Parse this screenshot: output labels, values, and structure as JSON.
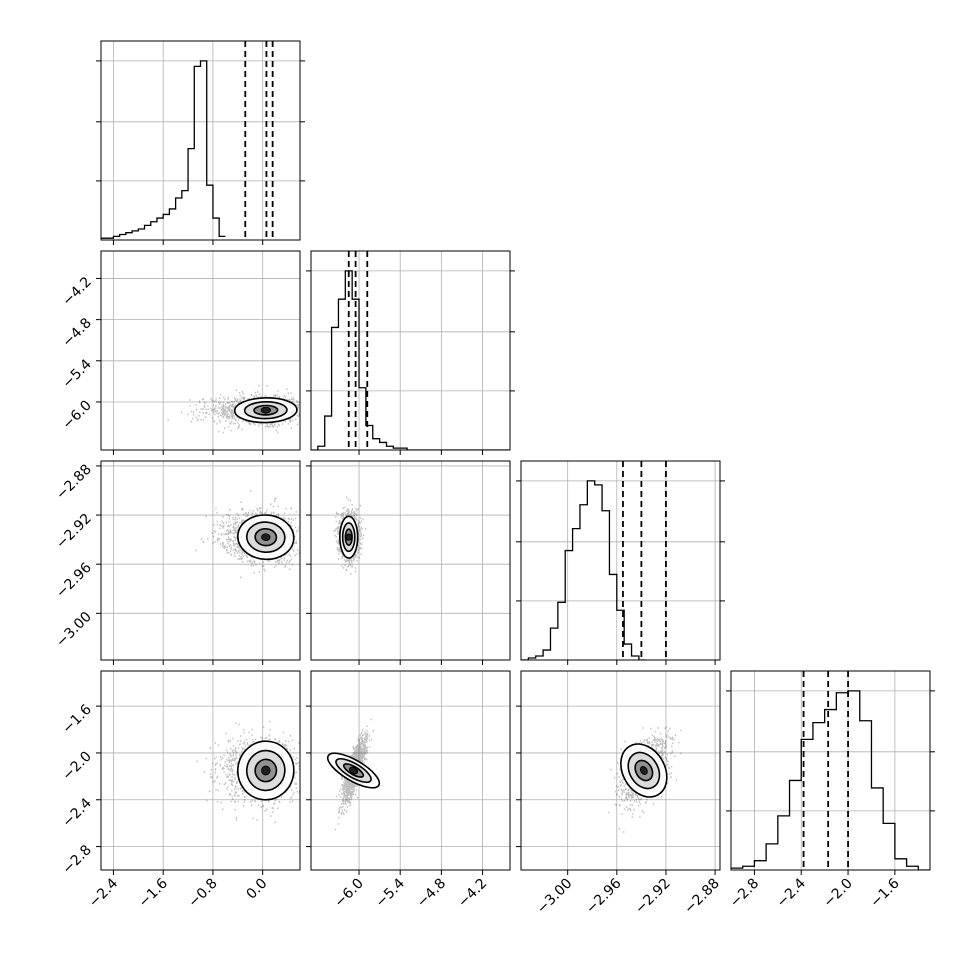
{
  "chart_data": {
    "type": "corner",
    "parameters": 4,
    "grid": true,
    "quantile_lines": "dashed",
    "contour_levels": 3,
    "colors": {
      "axes": "#000000",
      "grid": "#b0b0b0",
      "points": "#000000",
      "fill_light": "#ffffff",
      "fill_dark": "#000000"
    },
    "ranges": [
      [
        -2.6,
        0.6
      ],
      [
        -6.7,
        -3.8
      ],
      [
        -3.038,
        -2.876
      ],
      [
        -3.0,
        -1.3
      ]
    ],
    "ticks": [
      [
        "-2.4",
        "-1.6",
        "-0.8",
        "0.0"
      ],
      [
        "-6.0",
        "-5.4",
        "-4.8",
        "-4.2"
      ],
      [
        "-3.00",
        "-2.96",
        "-2.92",
        "-2.88"
      ],
      [
        "-2.8",
        "-2.4",
        "-2.0",
        "-1.6"
      ]
    ],
    "y_tick_labels": {
      "row1": [
        "-4.2",
        "-4.8",
        "-5.4",
        "-6.0"
      ],
      "row2": [
        "-2.88",
        "-2.92",
        "-2.96",
        "-3.00"
      ],
      "row3": [
        "-1.6",
        "-2.0",
        "-2.4",
        "-2.8"
      ]
    },
    "x_tick_labels": {
      "col0": [
        "-2.4",
        "-1.6",
        "-0.8",
        "0.0"
      ],
      "col1": [
        "-6.0",
        "-5.4",
        "-4.8",
        "-4.2"
      ],
      "col2": [
        "-3.00",
        "-2.96",
        "-2.92",
        "-2.88"
      ],
      "col3": [
        "-2.8",
        "-2.4",
        "-2.0",
        "-1.6"
      ]
    },
    "quantiles": [
      [
        -0.28,
        0.06,
        0.16
      ],
      [
        -6.15,
        -6.05,
        -5.88
      ],
      [
        -2.955,
        -2.94,
        -2.92
      ],
      [
        -2.38,
        -2.17,
        -2.0
      ]
    ],
    "histograms": [
      {
        "bin_start": -2.6,
        "bin_width": 0.1,
        "counts": [
          1,
          1,
          2,
          3,
          4,
          5,
          6,
          8,
          10,
          12,
          14,
          17,
          23,
          27,
          50,
          95,
          98,
          30,
          12,
          2
        ]
      },
      {
        "bin_start": -6.7,
        "bin_width": 0.1,
        "counts": [
          0,
          2,
          18,
          65,
          80,
          95,
          80,
          33,
          13,
          6,
          4,
          2,
          1,
          1,
          0,
          0,
          0,
          0,
          0,
          0,
          0,
          0,
          0,
          0,
          0,
          0,
          0,
          0,
          0
        ]
      },
      {
        "bin_start": -3.038,
        "bin_width": 0.006,
        "counts": [
          0,
          1,
          2,
          5,
          16,
          29,
          55,
          66,
          78,
          90,
          88,
          75,
          43,
          25,
          8,
          2,
          0
        ]
      },
      {
        "bin_start": -3.0,
        "bin_width": 0.1,
        "counts": [
          1,
          2,
          5,
          14,
          29,
          48,
          70,
          79,
          86,
          95,
          96,
          80,
          44,
          25,
          6,
          2,
          0
        ]
      }
    ],
    "pairs": [
      {
        "row": 1,
        "col": 0,
        "xc": 0.05,
        "yc": -6.12,
        "rx": 0.5,
        "ry": 0.18,
        "rho": 0.05,
        "skew_left": 0.9
      },
      {
        "row": 2,
        "col": 0,
        "xc": 0.05,
        "yc": -2.938,
        "rx": 0.45,
        "ry": 0.018,
        "rho": -0.1,
        "skew_left": 0.7
      },
      {
        "row": 2,
        "col": 1,
        "xc": -6.15,
        "yc": -2.938,
        "rx": 0.13,
        "ry": 0.017,
        "rho": 0.0,
        "skew_left": 0
      },
      {
        "row": 3,
        "col": 0,
        "xc": 0.05,
        "yc": -2.15,
        "rx": 0.45,
        "ry": 0.25,
        "rho": -0.1,
        "skew_left": 0.7
      },
      {
        "row": 3,
        "col": 1,
        "xc": -6.08,
        "yc": -2.15,
        "rx": 0.15,
        "ry": 0.25,
        "rho": 0.8,
        "skew_left": 0
      },
      {
        "row": 3,
        "col": 2,
        "xc": -2.938,
        "yc": -2.15,
        "rx": 0.017,
        "ry": 0.24,
        "rho": 0.5,
        "skew_left": 0
      }
    ]
  }
}
